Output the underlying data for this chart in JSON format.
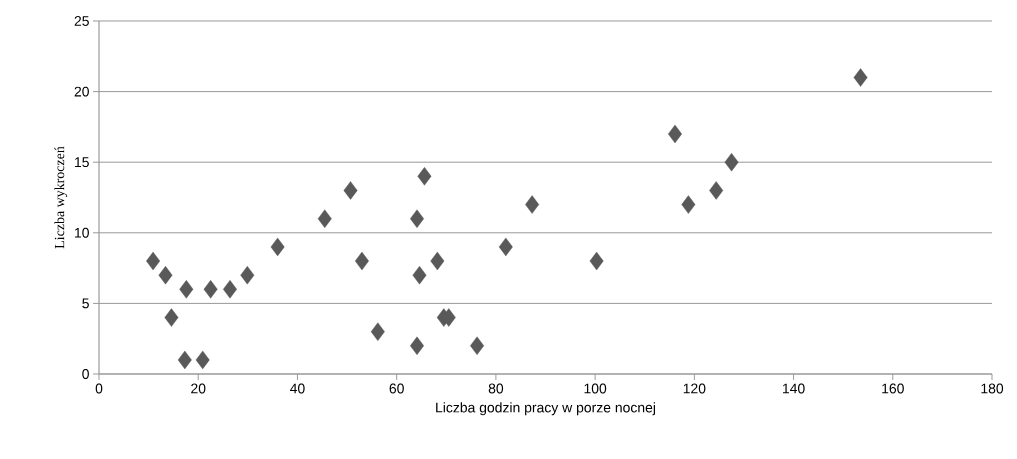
{
  "chart_data": {
    "type": "scatter",
    "xlabel": "Liczba godzin pracy w porze nocnej",
    "ylabel": "Liczba wykroczeń",
    "x": [
      10.9,
      13.4,
      14.6,
      17.6,
      17.3,
      20.9,
      22.5,
      26.4,
      29.9,
      36.0,
      45.5,
      50.7,
      53.0,
      56.2,
      65.6,
      64.1,
      87.3,
      118.8,
      124.4,
      82.0,
      68.2,
      64.6,
      100.3,
      69.5,
      70.5,
      64.1,
      76.2,
      153.5,
      116.1,
      127.5
    ],
    "values": [
      8,
      7,
      4,
      6,
      1,
      1,
      6,
      6,
      7,
      9,
      11,
      13,
      8,
      3,
      14,
      11,
      12,
      12,
      13,
      9,
      8,
      7,
      8,
      4,
      4,
      2,
      2,
      21,
      17,
      15
    ],
    "color": "#595959",
    "marker": "diamond",
    "grid": "y",
    "xlim": [
      0,
      180
    ],
    "xticks": [
      0,
      20,
      40,
      60,
      80,
      100,
      120,
      140,
      160,
      180
    ],
    "ylim": [
      0,
      25
    ],
    "yticks": [
      0,
      5,
      10,
      15,
      20,
      25
    ]
  }
}
